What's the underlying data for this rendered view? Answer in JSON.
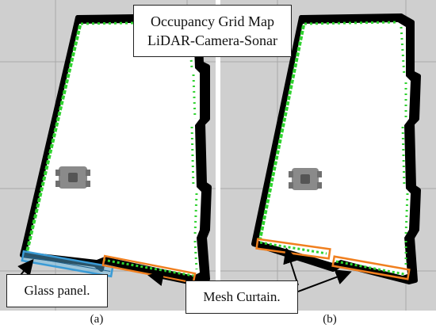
{
  "title": {
    "line1": "Occupancy Grid Map",
    "line2": "LiDAR-Camera-Sonar"
  },
  "callouts": {
    "glass_panel": "Glass panel.",
    "mesh_curtain": "Mesh Curtain."
  },
  "panels": [
    {
      "label": "(a)"
    },
    {
      "label": "(b)"
    }
  ],
  "colors": {
    "background_grid": "#cfcfcf",
    "grid_lines": "#a8a8a8",
    "free_space": "#ffffff",
    "occupied": "#000000",
    "lidar_points": "#2fd22f",
    "glass_highlight": "#3a9bd6",
    "mesh_highlight": "#f07f1e",
    "robot": "#808080"
  }
}
